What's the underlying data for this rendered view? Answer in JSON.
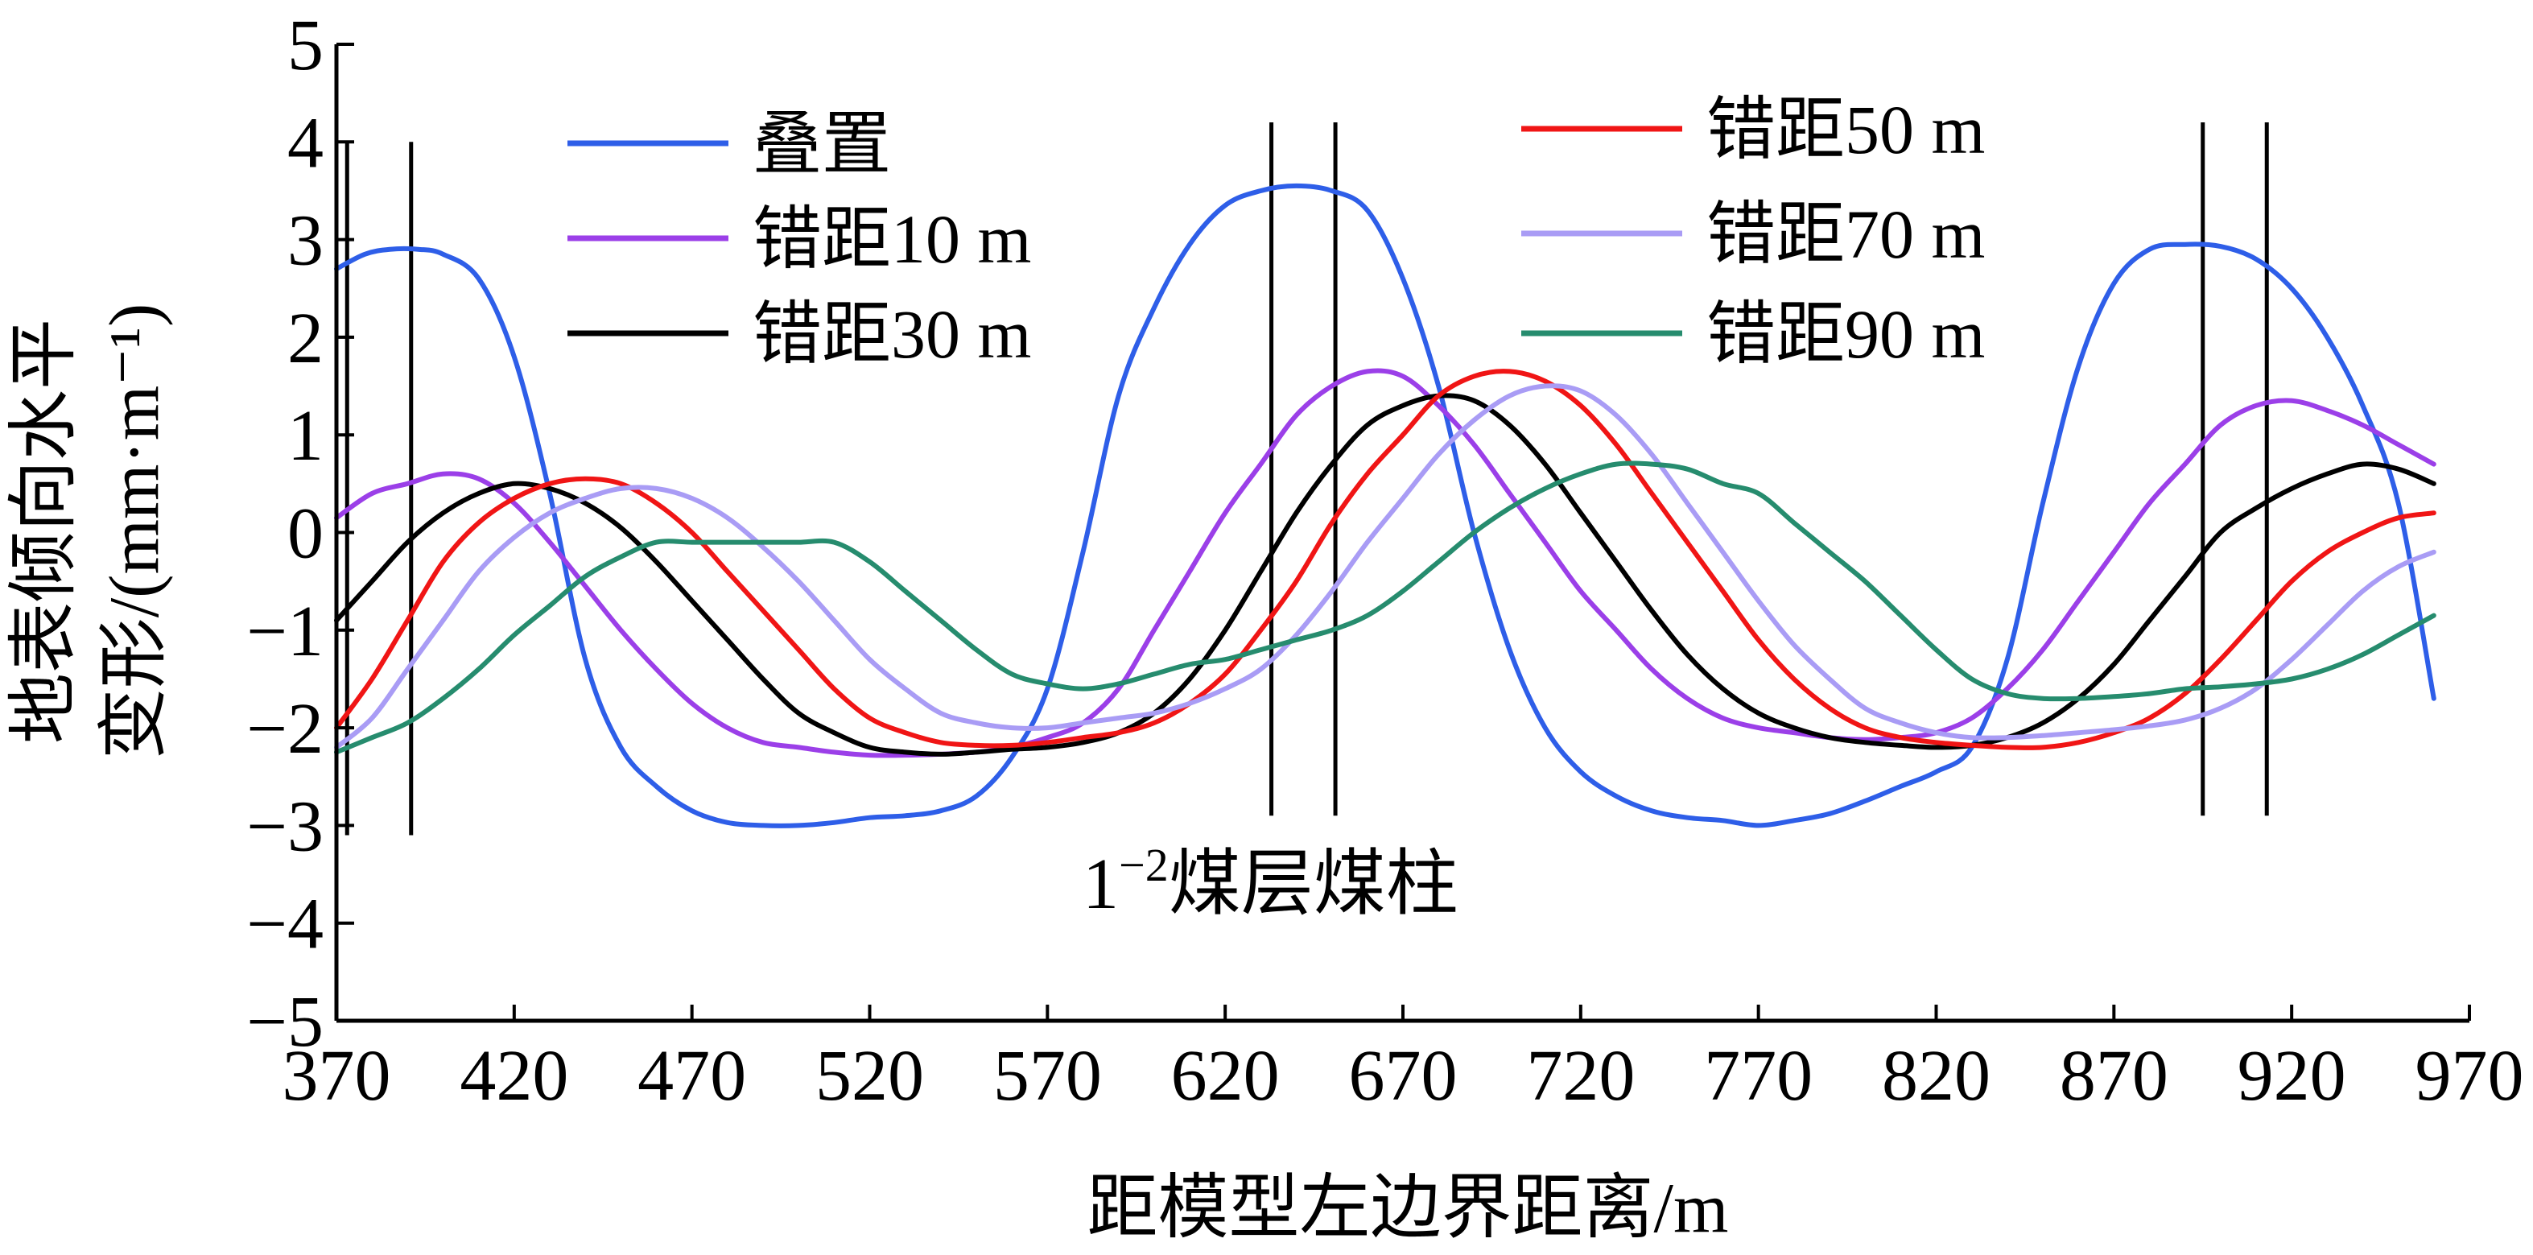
{
  "chart_data": {
    "type": "line",
    "title": "",
    "xlabel": "距模型左边界距离/m",
    "ylabel_line1": "地表倾向水平",
    "ylabel_line2": "变形/(mm·m⁻¹)",
    "xlim": [
      370,
      970
    ],
    "ylim": [
      -5,
      5
    ],
    "xticks": [
      370,
      420,
      470,
      520,
      570,
      620,
      670,
      720,
      770,
      820,
      870,
      920,
      970
    ],
    "yticks": [
      5,
      4,
      3,
      2,
      1,
      0,
      -1,
      -2,
      -3,
      -4,
      -5
    ],
    "ytick_labels": [
      "5",
      "4",
      "3",
      "2",
      "1",
      "0",
      "−1",
      "−2",
      "−3",
      "−4",
      "−5"
    ],
    "annotation": "1⁻²煤层煤柱",
    "annotation_parts": {
      "base": "1",
      "sup": "−2",
      "rest": "煤层煤柱"
    },
    "pillar_lines": [
      {
        "x": 373,
        "y_top": 4.0,
        "y_bottom": -3.1
      },
      {
        "x": 391,
        "y_top": 4.0,
        "y_bottom": -3.1
      },
      {
        "x": 633,
        "y_top": 4.2,
        "y_bottom": -2.9
      },
      {
        "x": 651,
        "y_top": 4.2,
        "y_bottom": -2.9
      },
      {
        "x": 895,
        "y_top": 4.2,
        "y_bottom": -2.9
      },
      {
        "x": 913,
        "y_top": 4.2,
        "y_bottom": -2.9
      }
    ],
    "legend_position": "top",
    "series": [
      {
        "name": "叠置",
        "color": "#2e5ee8",
        "x": [
          370,
          378,
          385,
          393,
          400,
          410,
          420,
          430,
          440,
          450,
          460,
          470,
          480,
          490,
          500,
          510,
          520,
          530,
          540,
          550,
          560,
          570,
          580,
          590,
          600,
          610,
          620,
          630,
          640,
          650,
          660,
          670,
          680,
          690,
          700,
          710,
          720,
          730,
          740,
          750,
          760,
          770,
          780,
          790,
          800,
          810,
          820,
          830,
          840,
          850,
          860,
          870,
          880,
          890,
          900,
          910,
          920,
          930,
          940,
          950,
          960
        ],
        "values": [
          2.7,
          2.85,
          2.9,
          2.9,
          2.85,
          2.6,
          1.8,
          0.4,
          -1.3,
          -2.2,
          -2.6,
          -2.85,
          -2.97,
          -3.0,
          -3.0,
          -2.97,
          -2.92,
          -2.9,
          -2.85,
          -2.7,
          -2.3,
          -1.6,
          -0.2,
          1.4,
          2.3,
          2.95,
          3.35,
          3.5,
          3.55,
          3.5,
          3.3,
          2.6,
          1.5,
          0.0,
          -1.2,
          -2.0,
          -2.45,
          -2.7,
          -2.85,
          -2.92,
          -2.95,
          -3.0,
          -2.95,
          -2.88,
          -2.75,
          -2.6,
          -2.45,
          -2.2,
          -1.3,
          0.3,
          1.7,
          2.55,
          2.9,
          2.95,
          2.93,
          2.8,
          2.5,
          2.0,
          1.3,
          0.3,
          -1.7
        ]
      },
      {
        "name": "错距10 m",
        "color": "#9b3fe8",
        "x": [
          370,
          380,
          390,
          400,
          410,
          420,
          430,
          440,
          450,
          460,
          470,
          480,
          490,
          500,
          510,
          520,
          530,
          540,
          550,
          560,
          570,
          580,
          590,
          600,
          610,
          620,
          630,
          640,
          650,
          660,
          670,
          680,
          690,
          700,
          710,
          720,
          730,
          740,
          750,
          760,
          770,
          780,
          790,
          800,
          810,
          820,
          830,
          840,
          850,
          860,
          870,
          880,
          890,
          900,
          910,
          920,
          930,
          940,
          950,
          960
        ],
        "values": [
          0.15,
          0.4,
          0.5,
          0.6,
          0.55,
          0.3,
          -0.1,
          -0.55,
          -1.0,
          -1.4,
          -1.75,
          -2.0,
          -2.15,
          -2.2,
          -2.25,
          -2.28,
          -2.28,
          -2.27,
          -2.25,
          -2.2,
          -2.1,
          -1.95,
          -1.6,
          -1.0,
          -0.4,
          0.2,
          0.7,
          1.2,
          1.5,
          1.65,
          1.6,
          1.3,
          0.9,
          0.4,
          -0.1,
          -0.6,
          -1.0,
          -1.4,
          -1.7,
          -1.9,
          -2.0,
          -2.05,
          -2.1,
          -2.12,
          -2.1,
          -2.05,
          -1.9,
          -1.6,
          -1.2,
          -0.7,
          -0.2,
          0.3,
          0.7,
          1.1,
          1.3,
          1.35,
          1.25,
          1.1,
          0.9,
          0.7
        ]
      },
      {
        "name": "错距30 m",
        "color": "#000000",
        "x": [
          370,
          380,
          390,
          400,
          410,
          420,
          430,
          440,
          450,
          460,
          470,
          480,
          490,
          500,
          510,
          520,
          530,
          540,
          550,
          560,
          570,
          580,
          590,
          600,
          610,
          620,
          630,
          640,
          650,
          660,
          670,
          680,
          690,
          700,
          710,
          720,
          730,
          740,
          750,
          760,
          770,
          780,
          790,
          800,
          810,
          820,
          830,
          840,
          850,
          860,
          870,
          880,
          890,
          900,
          910,
          920,
          930,
          940,
          950,
          960
        ],
        "values": [
          -0.9,
          -0.5,
          -0.1,
          0.2,
          0.4,
          0.5,
          0.45,
          0.3,
          0.05,
          -0.3,
          -0.7,
          -1.1,
          -1.5,
          -1.85,
          -2.05,
          -2.2,
          -2.25,
          -2.27,
          -2.25,
          -2.22,
          -2.2,
          -2.15,
          -2.05,
          -1.85,
          -1.5,
          -1.0,
          -0.4,
          0.2,
          0.7,
          1.1,
          1.3,
          1.4,
          1.35,
          1.1,
          0.7,
          0.2,
          -0.3,
          -0.8,
          -1.25,
          -1.6,
          -1.85,
          -2.0,
          -2.1,
          -2.15,
          -2.18,
          -2.2,
          -2.18,
          -2.1,
          -1.95,
          -1.7,
          -1.35,
          -0.9,
          -0.45,
          0.0,
          0.25,
          0.45,
          0.6,
          0.7,
          0.65,
          0.5
        ]
      },
      {
        "name": "错距50 m",
        "color": "#f01515",
        "x": [
          370,
          380,
          390,
          400,
          410,
          420,
          430,
          440,
          450,
          460,
          470,
          480,
          490,
          500,
          510,
          520,
          530,
          540,
          550,
          560,
          570,
          580,
          590,
          600,
          610,
          620,
          630,
          640,
          650,
          660,
          670,
          680,
          690,
          700,
          710,
          720,
          730,
          740,
          750,
          760,
          770,
          780,
          790,
          800,
          810,
          820,
          830,
          840,
          850,
          860,
          870,
          880,
          890,
          900,
          910,
          920,
          930,
          940,
          950,
          960
        ],
        "values": [
          -2.0,
          -1.5,
          -0.9,
          -0.3,
          0.1,
          0.35,
          0.5,
          0.55,
          0.5,
          0.3,
          0.0,
          -0.4,
          -0.8,
          -1.2,
          -1.6,
          -1.9,
          -2.05,
          -2.15,
          -2.18,
          -2.18,
          -2.15,
          -2.1,
          -2.05,
          -1.95,
          -1.75,
          -1.45,
          -1.0,
          -0.5,
          0.1,
          0.6,
          1.0,
          1.4,
          1.6,
          1.65,
          1.55,
          1.3,
          0.9,
          0.4,
          -0.1,
          -0.6,
          -1.1,
          -1.5,
          -1.8,
          -2.0,
          -2.1,
          -2.15,
          -2.18,
          -2.2,
          -2.2,
          -2.15,
          -2.05,
          -1.9,
          -1.65,
          -1.3,
          -0.9,
          -0.5,
          -0.2,
          0.0,
          0.15,
          0.2
        ]
      },
      {
        "name": "错距70 m",
        "color": "#a99cf5",
        "x": [
          370,
          380,
          390,
          400,
          410,
          420,
          430,
          440,
          450,
          460,
          470,
          480,
          490,
          500,
          510,
          520,
          530,
          540,
          550,
          560,
          570,
          580,
          590,
          600,
          610,
          620,
          630,
          640,
          650,
          660,
          670,
          680,
          690,
          700,
          710,
          720,
          730,
          740,
          750,
          760,
          770,
          780,
          790,
          800,
          810,
          820,
          830,
          840,
          850,
          860,
          870,
          880,
          890,
          900,
          910,
          920,
          930,
          940,
          950,
          960
        ],
        "values": [
          -2.2,
          -1.9,
          -1.4,
          -0.9,
          -0.4,
          -0.05,
          0.2,
          0.35,
          0.45,
          0.45,
          0.35,
          0.15,
          -0.15,
          -0.5,
          -0.9,
          -1.3,
          -1.6,
          -1.85,
          -1.95,
          -2.0,
          -2.0,
          -1.95,
          -1.9,
          -1.85,
          -1.75,
          -1.6,
          -1.4,
          -1.05,
          -0.6,
          -0.1,
          0.35,
          0.8,
          1.15,
          1.4,
          1.5,
          1.45,
          1.2,
          0.8,
          0.3,
          -0.2,
          -0.7,
          -1.15,
          -1.5,
          -1.8,
          -1.95,
          -2.05,
          -2.1,
          -2.1,
          -2.08,
          -2.05,
          -2.02,
          -1.98,
          -1.92,
          -1.8,
          -1.6,
          -1.3,
          -0.95,
          -0.6,
          -0.35,
          -0.2
        ]
      },
      {
        "name": "错距90 m",
        "color": "#268c6e",
        "x": [
          370,
          380,
          390,
          400,
          410,
          420,
          430,
          440,
          450,
          460,
          470,
          480,
          490,
          500,
          510,
          520,
          530,
          540,
          550,
          560,
          570,
          580,
          590,
          600,
          610,
          620,
          630,
          640,
          650,
          660,
          670,
          680,
          690,
          700,
          710,
          720,
          730,
          740,
          750,
          760,
          770,
          780,
          790,
          800,
          810,
          820,
          830,
          840,
          850,
          860,
          870,
          880,
          890,
          900,
          910,
          920,
          930,
          940,
          950,
          960
        ],
        "values": [
          -2.25,
          -2.1,
          -1.95,
          -1.7,
          -1.4,
          -1.05,
          -0.75,
          -0.45,
          -0.25,
          -0.1,
          -0.1,
          -0.1,
          -0.1,
          -0.1,
          -0.1,
          -0.3,
          -0.6,
          -0.9,
          -1.2,
          -1.45,
          -1.55,
          -1.6,
          -1.55,
          -1.45,
          -1.35,
          -1.3,
          -1.2,
          -1.1,
          -1.0,
          -0.85,
          -0.6,
          -0.3,
          0.0,
          0.25,
          0.45,
          0.6,
          0.7,
          0.7,
          0.65,
          0.5,
          0.4,
          0.1,
          -0.2,
          -0.5,
          -0.85,
          -1.2,
          -1.5,
          -1.65,
          -1.7,
          -1.7,
          -1.68,
          -1.65,
          -1.6,
          -1.58,
          -1.55,
          -1.5,
          -1.4,
          -1.25,
          -1.05,
          -0.85
        ]
      }
    ]
  }
}
